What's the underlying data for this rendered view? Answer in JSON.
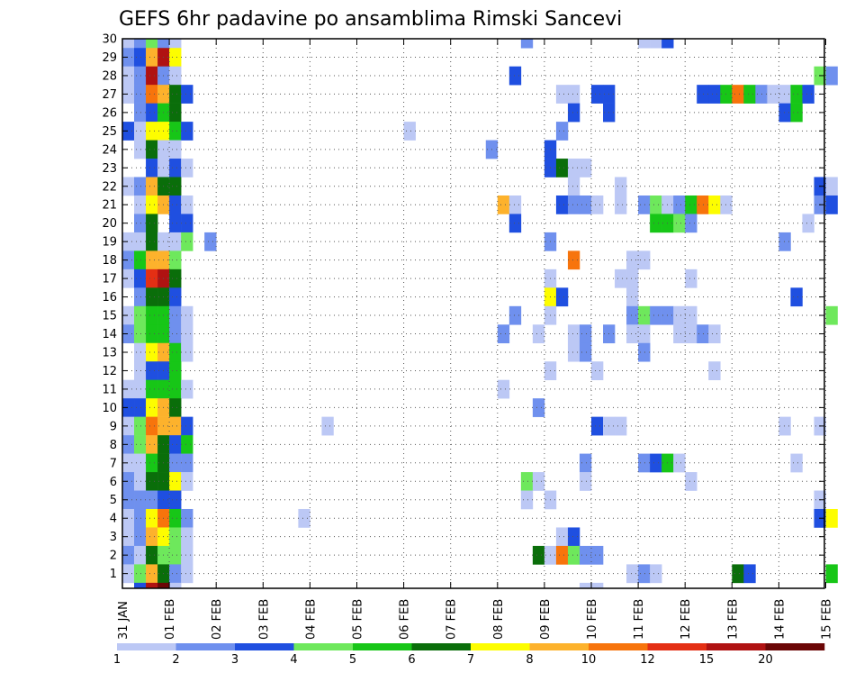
{
  "title": "GEFS 6hr padavine po ansamblima Rimski Sancevi",
  "chart_data": {
    "type": "heatmap",
    "title": "GEFS 6hr padavine po ansamblima Rimski Sancevi",
    "xlabel": "",
    "ylabel": "",
    "x_tick_labels": [
      "31 JAN",
      "01 FEB",
      "02 FEB",
      "03 FEB",
      "04 FEB",
      "05 FEB",
      "06 FEB",
      "07 FEB",
      "08 FEB",
      "09 FEB",
      "10 FEB",
      "11 FEB",
      "12 FEB",
      "13 FEB",
      "14 FEB",
      "15 FEB"
    ],
    "y_tick_labels": [
      "1",
      "2",
      "3",
      "4",
      "5",
      "6",
      "7",
      "8",
      "9",
      "10",
      "11",
      "12",
      "13",
      "14",
      "15",
      "16",
      "17",
      "18",
      "19",
      "20",
      "21",
      "22",
      "23",
      "24",
      "25",
      "26",
      "27",
      "28",
      "29",
      "30"
    ],
    "ylim": [
      0,
      30
    ],
    "grid": true,
    "colorbar": {
      "levels": [
        "1",
        "2",
        "3",
        "4",
        "5",
        "6",
        "7",
        "8",
        "10",
        "12",
        "15",
        "20"
      ],
      "colors": [
        "#bcc8f5",
        "#6f90ee",
        "#1f4fe0",
        "#6ee85c",
        "#17c617",
        "#0a6e0a",
        "#fdfd00",
        "#fdb22c",
        "#f7740c",
        "#e42f14",
        "#b01212",
        "#6b0606"
      ]
    },
    "cells": [
      {
        "member": 30,
        "cols": [
          [
            0,
            1
          ],
          [
            1,
            2
          ],
          [
            2,
            4
          ],
          [
            3,
            2
          ],
          [
            4,
            1
          ],
          [
            34,
            2
          ],
          [
            44,
            1
          ],
          [
            45,
            1
          ],
          [
            46,
            3
          ]
        ]
      },
      {
        "member": 29,
        "cols": [
          [
            0,
            2
          ],
          [
            1,
            3
          ],
          [
            2,
            8
          ],
          [
            3,
            11
          ],
          [
            4,
            7
          ]
        ]
      },
      {
        "member": 28,
        "cols": [
          [
            0,
            1
          ],
          [
            1,
            2
          ],
          [
            2,
            11
          ],
          [
            3,
            2
          ],
          [
            4,
            1
          ],
          [
            33,
            3
          ],
          [
            59,
            4
          ],
          [
            60,
            2
          ]
        ]
      },
      {
        "member": 27,
        "cols": [
          [
            0,
            1
          ],
          [
            1,
            2
          ],
          [
            2,
            9
          ],
          [
            3,
            8
          ],
          [
            4,
            6
          ],
          [
            5,
            3
          ],
          [
            37,
            1
          ],
          [
            38,
            1
          ],
          [
            40,
            3
          ],
          [
            41,
            3
          ],
          [
            49,
            3
          ],
          [
            50,
            3
          ],
          [
            51,
            5
          ],
          [
            52,
            9
          ],
          [
            53,
            5
          ],
          [
            54,
            2
          ],
          [
            55,
            1
          ],
          [
            56,
            1
          ],
          [
            57,
            5
          ],
          [
            58,
            3
          ]
        ]
      },
      {
        "member": 26,
        "cols": [
          [
            1,
            2
          ],
          [
            2,
            3
          ],
          [
            3,
            5
          ],
          [
            4,
            6
          ],
          [
            38,
            3
          ],
          [
            41,
            3
          ],
          [
            56,
            3
          ],
          [
            57,
            5
          ]
        ]
      },
      {
        "member": 25,
        "cols": [
          [
            0,
            3
          ],
          [
            1,
            1
          ],
          [
            2,
            7
          ],
          [
            3,
            7
          ],
          [
            4,
            5
          ],
          [
            5,
            3
          ],
          [
            24,
            1
          ],
          [
            37,
            2
          ]
        ]
      },
      {
        "member": 24,
        "cols": [
          [
            1,
            1
          ],
          [
            2,
            6
          ],
          [
            3,
            1
          ],
          [
            4,
            1
          ],
          [
            31,
            2
          ],
          [
            36,
            3
          ]
        ]
      },
      {
        "member": 23,
        "cols": [
          [
            2,
            3
          ],
          [
            3,
            1
          ],
          [
            4,
            3
          ],
          [
            5,
            1
          ],
          [
            36,
            3
          ],
          [
            37,
            6
          ],
          [
            38,
            1
          ],
          [
            39,
            1
          ]
        ]
      },
      {
        "member": 22,
        "cols": [
          [
            0,
            1
          ],
          [
            1,
            2
          ],
          [
            2,
            8
          ],
          [
            3,
            6
          ],
          [
            4,
            6
          ],
          [
            38,
            1
          ],
          [
            42,
            1
          ],
          [
            59,
            3
          ],
          [
            60,
            1
          ]
        ]
      },
      {
        "member": 21,
        "cols": [
          [
            1,
            1
          ],
          [
            2,
            7
          ],
          [
            3,
            8
          ],
          [
            4,
            3
          ],
          [
            5,
            1
          ],
          [
            32,
            8
          ],
          [
            33,
            1
          ],
          [
            37,
            3
          ],
          [
            38,
            2
          ],
          [
            39,
            2
          ],
          [
            40,
            1
          ],
          [
            42,
            1
          ],
          [
            44,
            2
          ],
          [
            45,
            4
          ],
          [
            46,
            1
          ],
          [
            47,
            2
          ],
          [
            48,
            5
          ],
          [
            49,
            9
          ],
          [
            50,
            7
          ],
          [
            51,
            1
          ],
          [
            59,
            2
          ],
          [
            60,
            3
          ]
        ]
      },
      {
        "member": 20,
        "cols": [
          [
            1,
            2
          ],
          [
            2,
            6
          ],
          [
            4,
            3
          ],
          [
            5,
            3
          ],
          [
            33,
            3
          ],
          [
            45,
            5
          ],
          [
            46,
            5
          ],
          [
            47,
            4
          ],
          [
            48,
            2
          ],
          [
            58,
            1
          ]
        ]
      },
      {
        "member": 19,
        "cols": [
          [
            0,
            1
          ],
          [
            1,
            1
          ],
          [
            2,
            6
          ],
          [
            3,
            1
          ],
          [
            4,
            1
          ],
          [
            5,
            4
          ],
          [
            7,
            2
          ],
          [
            36,
            2
          ],
          [
            56,
            2
          ]
        ]
      },
      {
        "member": 18,
        "cols": [
          [
            0,
            2
          ],
          [
            1,
            5
          ],
          [
            2,
            8
          ],
          [
            3,
            8
          ],
          [
            4,
            4
          ],
          [
            38,
            9
          ],
          [
            43,
            1
          ],
          [
            44,
            1
          ]
        ]
      },
      {
        "member": 17,
        "cols": [
          [
            0,
            1
          ],
          [
            1,
            3
          ],
          [
            2,
            10
          ],
          [
            3,
            11
          ],
          [
            4,
            6
          ],
          [
            36,
            1
          ],
          [
            42,
            1
          ],
          [
            43,
            1
          ],
          [
            48,
            1
          ]
        ]
      },
      {
        "member": 16,
        "cols": [
          [
            1,
            2
          ],
          [
            2,
            6
          ],
          [
            3,
            6
          ],
          [
            4,
            3
          ],
          [
            36,
            7
          ],
          [
            37,
            3
          ],
          [
            43,
            1
          ],
          [
            57,
            3
          ]
        ]
      },
      {
        "member": 15,
        "cols": [
          [
            0,
            1
          ],
          [
            1,
            4
          ],
          [
            2,
            5
          ],
          [
            3,
            5
          ],
          [
            4,
            2
          ],
          [
            5,
            1
          ],
          [
            33,
            2
          ],
          [
            36,
            1
          ],
          [
            43,
            2
          ],
          [
            44,
            4
          ],
          [
            45,
            2
          ],
          [
            46,
            2
          ],
          [
            47,
            1
          ],
          [
            48,
            1
          ],
          [
            60,
            4
          ]
        ]
      },
      {
        "member": 14,
        "cols": [
          [
            0,
            2
          ],
          [
            1,
            4
          ],
          [
            2,
            5
          ],
          [
            3,
            5
          ],
          [
            4,
            2
          ],
          [
            5,
            1
          ],
          [
            32,
            2
          ],
          [
            35,
            1
          ],
          [
            38,
            1
          ],
          [
            39,
            2
          ],
          [
            41,
            2
          ],
          [
            43,
            1
          ],
          [
            44,
            1
          ],
          [
            47,
            1
          ],
          [
            48,
            1
          ],
          [
            49,
            2
          ],
          [
            50,
            1
          ]
        ]
      },
      {
        "member": 13,
        "cols": [
          [
            1,
            1
          ],
          [
            2,
            7
          ],
          [
            3,
            8
          ],
          [
            4,
            5
          ],
          [
            5,
            1
          ],
          [
            38,
            1
          ],
          [
            39,
            2
          ],
          [
            44,
            2
          ]
        ]
      },
      {
        "member": 12,
        "cols": [
          [
            1,
            1
          ],
          [
            2,
            3
          ],
          [
            3,
            3
          ],
          [
            4,
            5
          ],
          [
            36,
            1
          ],
          [
            40,
            1
          ],
          [
            50,
            1
          ]
        ]
      },
      {
        "member": 11,
        "cols": [
          [
            0,
            1
          ],
          [
            1,
            1
          ],
          [
            2,
            5
          ],
          [
            3,
            5
          ],
          [
            4,
            5
          ],
          [
            5,
            1
          ],
          [
            32,
            1
          ]
        ]
      },
      {
        "member": 10,
        "cols": [
          [
            0,
            3
          ],
          [
            1,
            3
          ],
          [
            2,
            7
          ],
          [
            3,
            8
          ],
          [
            4,
            6
          ],
          [
            35,
            2
          ]
        ]
      },
      {
        "member": 9,
        "cols": [
          [
            0,
            1
          ],
          [
            1,
            4
          ],
          [
            2,
            9
          ],
          [
            3,
            8
          ],
          [
            4,
            8
          ],
          [
            5,
            3
          ],
          [
            17,
            1
          ],
          [
            40,
            3
          ],
          [
            41,
            1
          ],
          [
            42,
            1
          ],
          [
            56,
            1
          ],
          [
            59,
            1
          ]
        ]
      },
      {
        "member": 8,
        "cols": [
          [
            0,
            2
          ],
          [
            1,
            4
          ],
          [
            2,
            8
          ],
          [
            3,
            6
          ],
          [
            4,
            3
          ],
          [
            5,
            5
          ]
        ]
      },
      {
        "member": 7,
        "cols": [
          [
            0,
            1
          ],
          [
            1,
            1
          ],
          [
            2,
            5
          ],
          [
            3,
            6
          ],
          [
            4,
            2
          ],
          [
            5,
            2
          ],
          [
            39,
            2
          ],
          [
            44,
            2
          ],
          [
            45,
            3
          ],
          [
            46,
            5
          ],
          [
            47,
            1
          ],
          [
            57,
            1
          ]
        ]
      },
      {
        "member": 6,
        "cols": [
          [
            0,
            2
          ],
          [
            1,
            1
          ],
          [
            2,
            6
          ],
          [
            3,
            6
          ],
          [
            4,
            7
          ],
          [
            5,
            1
          ],
          [
            34,
            4
          ],
          [
            35,
            1
          ],
          [
            39,
            1
          ],
          [
            48,
            1
          ]
        ]
      },
      {
        "member": 5,
        "cols": [
          [
            0,
            2
          ],
          [
            1,
            2
          ],
          [
            2,
            2
          ],
          [
            3,
            3
          ],
          [
            4,
            3
          ],
          [
            34,
            1
          ],
          [
            36,
            1
          ],
          [
            59,
            1
          ]
        ]
      },
      {
        "member": 4,
        "cols": [
          [
            0,
            1
          ],
          [
            1,
            2
          ],
          [
            2,
            7
          ],
          [
            3,
            9
          ],
          [
            4,
            5
          ],
          [
            5,
            2
          ],
          [
            15,
            1
          ],
          [
            59,
            3
          ],
          [
            60,
            7
          ]
        ]
      },
      {
        "member": 3,
        "cols": [
          [
            0,
            1
          ],
          [
            1,
            2
          ],
          [
            2,
            8
          ],
          [
            3,
            7
          ],
          [
            4,
            4
          ],
          [
            5,
            1
          ],
          [
            37,
            1
          ],
          [
            38,
            3
          ]
        ]
      },
      {
        "member": 2,
        "cols": [
          [
            0,
            2
          ],
          [
            1,
            1
          ],
          [
            2,
            6
          ],
          [
            3,
            4
          ],
          [
            4,
            4
          ],
          [
            5,
            1
          ],
          [
            35,
            6
          ],
          [
            36,
            1
          ],
          [
            37,
            9
          ],
          [
            38,
            4
          ],
          [
            39,
            2
          ],
          [
            40,
            2
          ]
        ]
      },
      {
        "member": 1,
        "cols": [
          [
            0,
            1
          ],
          [
            1,
            4
          ],
          [
            2,
            8
          ],
          [
            3,
            6
          ],
          [
            4,
            2
          ],
          [
            5,
            1
          ],
          [
            43,
            1
          ],
          [
            44,
            2
          ],
          [
            45,
            1
          ],
          [
            52,
            6
          ],
          [
            53,
            3
          ],
          [
            60,
            5
          ]
        ]
      },
      {
        "member": 0,
        "cols": [
          [
            1,
            3
          ],
          [
            2,
            11
          ],
          [
            3,
            12
          ],
          [
            4,
            1
          ],
          [
            39,
            1
          ],
          [
            40,
            1
          ]
        ]
      }
    ]
  }
}
